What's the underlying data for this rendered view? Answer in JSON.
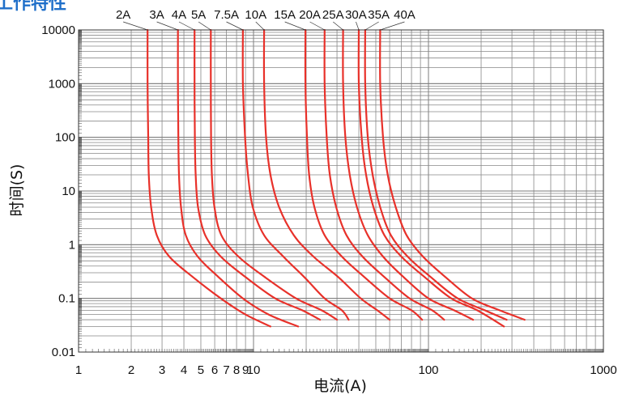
{
  "clipped_title": "工作特性",
  "chart_data": {
    "type": "line",
    "title": "",
    "xlabel": "电流(A)",
    "ylabel": "时间(S)",
    "xscale": "log",
    "yscale": "log",
    "xlim": [
      1,
      1000
    ],
    "ylim": [
      0.01,
      10000
    ],
    "grid": true,
    "x_ticks": [
      1,
      2,
      3,
      4,
      5,
      6,
      7,
      8,
      9,
      10,
      100,
      1000
    ],
    "x_tick_labels": [
      "1",
      "2",
      "3",
      "4",
      "5",
      "6",
      "7",
      "8",
      "9",
      "10",
      "100",
      "1000"
    ],
    "y_ticks": [
      0.01,
      0.1,
      1,
      10,
      100,
      1000,
      10000
    ],
    "y_tick_labels": [
      "0.01",
      "0.1",
      "1",
      "10",
      "100",
      "1000",
      "10000"
    ],
    "line_color": "#e8312a",
    "series": [
      {
        "name": "2A",
        "label_at_x": 1.8,
        "leader_to_x": 2.48,
        "x": [
          2.48,
          2.48,
          2.5,
          2.52,
          2.6,
          2.8,
          3.3,
          4.5,
          6.5,
          9.0,
          12.5
        ],
        "y": [
          10000,
          1000,
          100,
          20,
          5,
          1.5,
          0.6,
          0.25,
          0.1,
          0.05,
          0.03
        ]
      },
      {
        "name": "3A",
        "label_at_x": 2.8,
        "leader_to_x": 3.7,
        "x": [
          3.7,
          3.7,
          3.72,
          3.75,
          3.85,
          4.1,
          4.8,
          6.3,
          8.7,
          12.2,
          18.0
        ],
        "y": [
          10000,
          1000,
          100,
          20,
          5,
          1.5,
          0.6,
          0.25,
          0.1,
          0.05,
          0.03
        ]
      },
      {
        "name": "4A",
        "label_at_x": 3.75,
        "leader_to_x": 4.6,
        "x": [
          4.6,
          4.6,
          4.62,
          4.67,
          4.82,
          5.3,
          6.5,
          9.0,
          13.3,
          19.0,
          24.0
        ],
        "y": [
          10000,
          1000,
          100,
          20,
          5,
          1.5,
          0.6,
          0.25,
          0.1,
          0.06,
          0.04
        ]
      },
      {
        "name": "5A",
        "label_at_x": 4.85,
        "leader_to_x": 5.7,
        "x": [
          5.7,
          5.7,
          5.72,
          5.78,
          5.98,
          6.55,
          8.2,
          11.6,
          17.5,
          24.5,
          30.0
        ],
        "y": [
          10000,
          1000,
          100,
          20,
          5,
          1.5,
          0.6,
          0.25,
          0.1,
          0.06,
          0.04
        ]
      },
      {
        "name": "7.5A",
        "label_at_x": 7.0,
        "leader_to_x": 8.7,
        "x": [
          8.7,
          8.7,
          8.95,
          9.3,
          9.9,
          11.5,
          14.8,
          19.5,
          25.5,
          32.0,
          35.0
        ],
        "y": [
          10000,
          1000,
          100,
          20,
          5,
          1.5,
          0.6,
          0.25,
          0.1,
          0.06,
          0.04
        ]
      },
      {
        "name": "10A",
        "label_at_x": 10.3,
        "leader_to_x": 11.5,
        "x": [
          11.5,
          11.5,
          11.8,
          12.5,
          14.0,
          17.0,
          22.0,
          30.5,
          41.0,
          51.0,
          60.0
        ],
        "y": [
          10000,
          1000,
          100,
          20,
          5,
          1.5,
          0.6,
          0.25,
          0.1,
          0.06,
          0.04
        ]
      },
      {
        "name": "15A",
        "label_at_x": 15.1,
        "leader_to_x": 19.8,
        "x": [
          19.8,
          19.8,
          20.2,
          20.8,
          22.3,
          25.5,
          32.0,
          43.0,
          60.0,
          80.0,
          92.0
        ],
        "y": [
          10000,
          1000,
          100,
          20,
          5,
          1.5,
          0.6,
          0.25,
          0.1,
          0.06,
          0.04
        ]
      },
      {
        "name": "20A",
        "label_at_x": 21.0,
        "leader_to_x": 25.5,
        "x": [
          25.5,
          25.5,
          26.2,
          27.3,
          29.7,
          34.0,
          42.0,
          56.0,
          78.0,
          105.0,
          123.0
        ],
        "y": [
          10000,
          1000,
          100,
          20,
          5,
          1.5,
          0.6,
          0.25,
          0.1,
          0.06,
          0.04
        ]
      },
      {
        "name": "25A",
        "label_at_x": 28.5,
        "leader_to_x": 32.5,
        "x": [
          32.5,
          32.5,
          33.5,
          35.5,
          39.0,
          45.0,
          55.0,
          72.0,
          100.0,
          140.0,
          180.0
        ],
        "y": [
          10000,
          1000,
          100,
          20,
          5,
          1.5,
          0.6,
          0.25,
          0.1,
          0.06,
          0.04
        ]
      },
      {
        "name": "30A",
        "label_at_x": 38.5,
        "leader_to_x": 40.0,
        "x": [
          40.0,
          40.0,
          41.5,
          44.0,
          48.5,
          56.0,
          70.0,
          95.0,
          135.0,
          190.0,
          270.0
        ],
        "y": [
          10000,
          1000,
          100,
          20,
          5,
          1.5,
          0.6,
          0.25,
          0.1,
          0.06,
          0.03
        ]
      },
      {
        "name": "35A",
        "label_at_x": 52.0,
        "leader_to_x": 43.5,
        "x": [
          43.5,
          43.5,
          45.0,
          48.0,
          53.0,
          61.0,
          76.0,
          103.0,
          147.0,
          210.0,
          280.0
        ],
        "y": [
          10000,
          1000,
          100,
          20,
          5,
          1.5,
          0.6,
          0.25,
          0.1,
          0.06,
          0.04
        ]
      },
      {
        "name": "40A",
        "label_at_x": 73.0,
        "leader_to_x": 53.0,
        "x": [
          53.0,
          53.0,
          55.0,
          58.5,
          65.0,
          75.0,
          93.0,
          125.0,
          177.0,
          255.0,
          355.0
        ],
        "y": [
          10000,
          1000,
          100,
          20,
          5,
          1.5,
          0.6,
          0.25,
          0.1,
          0.06,
          0.04
        ]
      }
    ]
  }
}
